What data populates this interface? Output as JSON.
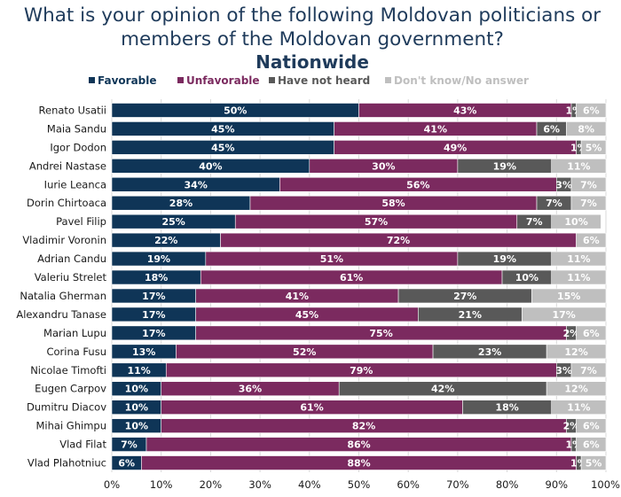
{
  "chart_data": {
    "type": "bar",
    "orientation": "horizontal",
    "stacked": true,
    "title": "What is your opinion of the following Moldovan politicians or members of the Moldovan government?",
    "title_lines": [
      "What is your opinion of the following Moldovan politicians or",
      "members of the Moldovan government?"
    ],
    "subtitle": "Nationwide",
    "legend_position": "top",
    "xlim": [
      0,
      100
    ],
    "x_ticks": [
      "0%",
      "10%",
      "20%",
      "30%",
      "40%",
      "50%",
      "60%",
      "70%",
      "80%",
      "90%",
      "100%"
    ],
    "categories": [
      "Renato Usatii",
      "Maia Sandu",
      "Igor Dodon",
      "Andrei Nastase",
      "Iurie Leanca",
      "Dorin Chirtoaca",
      "Pavel Filip",
      "Vladimir Voronin",
      "Adrian Candu",
      "Valeriu Strelet",
      "Natalia Gherman",
      "Alexandru Tanase",
      "Marian Lupu",
      "Corina Fusu",
      "Nicolae Timofti",
      "Eugen Carpov",
      "Dumitru Diacov",
      "Mihai Ghimpu",
      "Vlad Filat",
      "Vlad Plahotniuc"
    ],
    "series": [
      {
        "name": "Favorable",
        "color": "#0f3557",
        "label_color": "#ffffff",
        "values": [
          50,
          45,
          45,
          40,
          34,
          28,
          25,
          22,
          19,
          18,
          17,
          17,
          17,
          13,
          11,
          10,
          10,
          10,
          7,
          6
        ]
      },
      {
        "name": "Unfavorable",
        "color": "#7b2a5f",
        "label_color": "#ffffff",
        "values": [
          43,
          41,
          49,
          30,
          56,
          58,
          57,
          72,
          51,
          61,
          41,
          45,
          75,
          52,
          79,
          36,
          61,
          82,
          86,
          88
        ]
      },
      {
        "name": "Have not heard",
        "color": "#595959",
        "label_color": "#ffffff",
        "values": [
          1,
          6,
          1,
          19,
          3,
          7,
          7,
          0,
          19,
          10,
          27,
          21,
          2,
          23,
          3,
          42,
          18,
          2,
          1,
          1
        ]
      },
      {
        "name": "Don't know/No answer",
        "color": "#bfbfbf",
        "label_color": "#ffffff",
        "values": [
          6,
          8,
          5,
          11,
          7,
          7,
          10,
          6,
          11,
          11,
          15,
          17,
          6,
          12,
          7,
          12,
          11,
          6,
          6,
          5
        ]
      }
    ]
  }
}
